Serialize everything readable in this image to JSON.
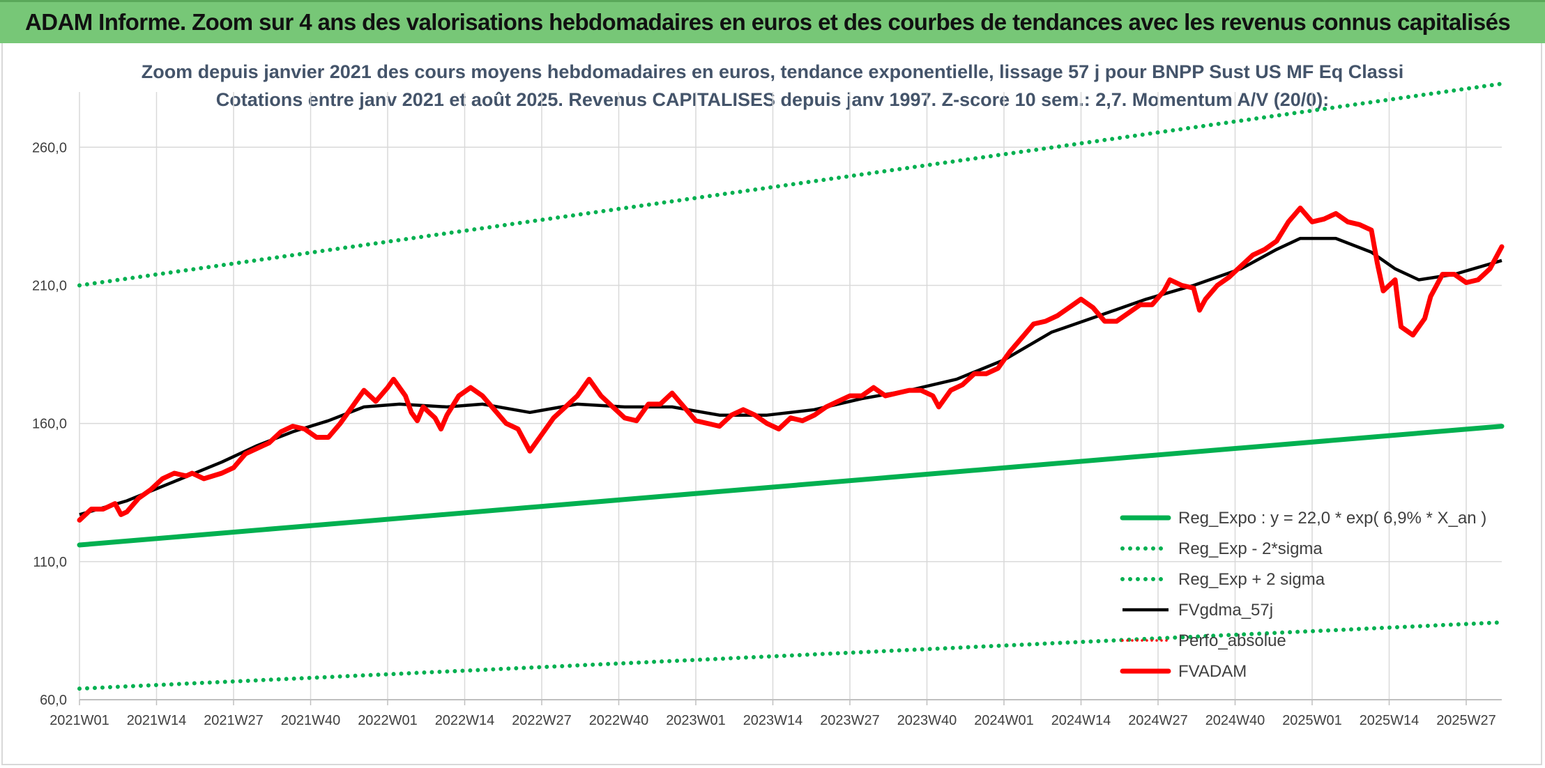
{
  "header": {
    "title": "ADAM Informe. Zoom sur 4 ans des valorisations hebdomadaires en euros et des courbes de tendances avec les revenus connus capitalisés"
  },
  "colors": {
    "header_bg": "#77c777",
    "trend_green": "#00b050",
    "price_red": "#ff0000",
    "avg_black": "#000000",
    "grid": "#d9d9d9"
  },
  "chart_data": {
    "type": "line",
    "title": "Zoom depuis janvier 2021 des cours moyens hebdomadaires en euros, tendance exponentielle, lissage 57 j pour BNPP Sust US MF Eq Classi",
    "subtitle": "Cotations entre janv 2021 et août 2025. Revenus CAPITALISES depuis janv 1997. Z-score 10 sem.: 2,7. Momentum A/V (20/0):",
    "ylim": [
      60,
      280
    ],
    "yticks": [
      "60,0",
      "110,0",
      "160,0",
      "210,0",
      "260,0"
    ],
    "ytick_values": [
      60,
      110,
      160,
      210,
      260
    ],
    "xticks": [
      "2021W01",
      "2021W14",
      "2021W27",
      "2021W40",
      "2022W01",
      "2022W14",
      "2022W27",
      "2022W40",
      "2023W01",
      "2023W14",
      "2023W27",
      "2023W40",
      "2024W01",
      "2024W14",
      "2024W27",
      "2024W40",
      "2025W01",
      "2025W14",
      "2025W27"
    ],
    "xtick_index": [
      0,
      13,
      26,
      39,
      52,
      65,
      78,
      91,
      104,
      117,
      130,
      143,
      156,
      169,
      182,
      195,
      208,
      221,
      234
    ],
    "n_weeks": 240,
    "grid": true,
    "legend_position": "bottom-right",
    "legend": [
      {
        "name": "Reg_Expo : y = 22,0 * exp( 6,9% *  X_an )",
        "style": "solid-thick",
        "color": "#00b050"
      },
      {
        "name": "Reg_Exp - 2*sigma",
        "style": "dotted",
        "color": "#00b050"
      },
      {
        "name": "Reg_Exp + 2 sigma",
        "style": "dotted",
        "color": "#00b050"
      },
      {
        "name": "FVgdma_57j",
        "style": "solid",
        "color": "#000000"
      },
      {
        "name": "Perfo_absolue",
        "style": "dotted-thin",
        "color": "#ff0000"
      },
      {
        "name": "FVADAM",
        "style": "solid-thick",
        "color": "#ff0000"
      }
    ],
    "series": [
      {
        "name": "Reg_Expo : y = 22,0 * exp( 6,9% *  X_an )",
        "style": "solid-thick",
        "color": "#00b050",
        "points": [
          [
            0,
            116
          ],
          [
            240,
            159
          ]
        ]
      },
      {
        "name": "Reg_Exp - 2*sigma",
        "style": "dotted",
        "color": "#00b050",
        "points": [
          [
            0,
            64
          ],
          [
            240,
            88
          ]
        ]
      },
      {
        "name": "Reg_Exp + 2 sigma",
        "style": "dotted",
        "color": "#00b050",
        "points": [
          [
            0,
            210
          ],
          [
            240,
            283
          ]
        ]
      },
      {
        "name": "FVgdma_57j",
        "style": "solid",
        "color": "#000000",
        "points": [
          [
            0,
            127
          ],
          [
            8,
            132
          ],
          [
            16,
            139
          ],
          [
            24,
            146
          ],
          [
            30,
            152
          ],
          [
            36,
            157
          ],
          [
            42,
            161
          ],
          [
            48,
            166
          ],
          [
            54,
            167
          ],
          [
            62,
            166
          ],
          [
            68,
            167
          ],
          [
            76,
            164
          ],
          [
            84,
            167
          ],
          [
            92,
            166
          ],
          [
            100,
            166
          ],
          [
            108,
            163
          ],
          [
            116,
            163
          ],
          [
            124,
            165
          ],
          [
            132,
            169
          ],
          [
            140,
            172
          ],
          [
            148,
            176
          ],
          [
            156,
            183
          ],
          [
            164,
            193
          ],
          [
            172,
            199
          ],
          [
            180,
            205
          ],
          [
            188,
            210
          ],
          [
            196,
            216
          ],
          [
            202,
            223
          ],
          [
            206,
            227
          ],
          [
            212,
            227
          ],
          [
            218,
            222
          ],
          [
            222,
            216
          ],
          [
            226,
            212
          ],
          [
            232,
            214
          ],
          [
            240,
            219
          ]
        ]
      },
      {
        "name": "FVADAM",
        "style": "solid-thick",
        "color": "#ff0000",
        "points": [
          [
            0,
            125
          ],
          [
            2,
            129
          ],
          [
            4,
            129
          ],
          [
            6,
            131
          ],
          [
            7,
            127
          ],
          [
            8,
            128
          ],
          [
            10,
            133
          ],
          [
            12,
            136
          ],
          [
            14,
            140
          ],
          [
            16,
            142
          ],
          [
            18,
            141
          ],
          [
            19,
            142
          ],
          [
            21,
            140
          ],
          [
            24,
            142
          ],
          [
            26,
            144
          ],
          [
            28,
            149
          ],
          [
            30,
            151
          ],
          [
            32,
            153
          ],
          [
            34,
            157
          ],
          [
            36,
            159
          ],
          [
            38,
            158
          ],
          [
            40,
            155
          ],
          [
            42,
            155
          ],
          [
            44,
            160
          ],
          [
            46,
            166
          ],
          [
            48,
            172
          ],
          [
            50,
            168
          ],
          [
            52,
            173
          ],
          [
            53,
            176
          ],
          [
            55,
            170
          ],
          [
            56,
            164
          ],
          [
            57,
            161
          ],
          [
            58,
            166
          ],
          [
            60,
            162
          ],
          [
            61,
            158
          ],
          [
            62,
            163
          ],
          [
            64,
            170
          ],
          [
            66,
            173
          ],
          [
            68,
            170
          ],
          [
            70,
            165
          ],
          [
            72,
            160
          ],
          [
            74,
            158
          ],
          [
            76,
            150
          ],
          [
            78,
            156
          ],
          [
            80,
            162
          ],
          [
            82,
            166
          ],
          [
            84,
            170
          ],
          [
            86,
            176
          ],
          [
            88,
            170
          ],
          [
            90,
            166
          ],
          [
            92,
            162
          ],
          [
            94,
            161
          ],
          [
            96,
            167
          ],
          [
            98,
            167
          ],
          [
            100,
            171
          ],
          [
            102,
            166
          ],
          [
            104,
            161
          ],
          [
            106,
            160
          ],
          [
            108,
            159
          ],
          [
            110,
            163
          ],
          [
            112,
            165
          ],
          [
            114,
            163
          ],
          [
            116,
            160
          ],
          [
            118,
            158
          ],
          [
            120,
            162
          ],
          [
            122,
            161
          ],
          [
            124,
            163
          ],
          [
            126,
            166
          ],
          [
            128,
            168
          ],
          [
            130,
            170
          ],
          [
            132,
            170
          ],
          [
            134,
            173
          ],
          [
            136,
            170
          ],
          [
            138,
            171
          ],
          [
            140,
            172
          ],
          [
            142,
            172
          ],
          [
            144,
            170
          ],
          [
            145,
            166
          ],
          [
            147,
            172
          ],
          [
            149,
            174
          ],
          [
            151,
            178
          ],
          [
            153,
            178
          ],
          [
            155,
            180
          ],
          [
            157,
            186
          ],
          [
            159,
            191
          ],
          [
            161,
            196
          ],
          [
            163,
            197
          ],
          [
            165,
            199
          ],
          [
            167,
            202
          ],
          [
            169,
            205
          ],
          [
            171,
            202
          ],
          [
            173,
            197
          ],
          [
            175,
            197
          ],
          [
            177,
            200
          ],
          [
            179,
            203
          ],
          [
            181,
            203
          ],
          [
            183,
            208
          ],
          [
            184,
            212
          ],
          [
            186,
            210
          ],
          [
            188,
            209
          ],
          [
            189,
            201
          ],
          [
            190,
            205
          ],
          [
            192,
            210
          ],
          [
            194,
            213
          ],
          [
            196,
            217
          ],
          [
            198,
            221
          ],
          [
            200,
            223
          ],
          [
            202,
            226
          ],
          [
            204,
            233
          ],
          [
            206,
            238
          ],
          [
            208,
            233
          ],
          [
            210,
            234
          ],
          [
            212,
            236
          ],
          [
            214,
            233
          ],
          [
            216,
            232
          ],
          [
            218,
            230
          ],
          [
            219,
            218
          ],
          [
            220,
            208
          ],
          [
            222,
            212
          ],
          [
            223,
            195
          ],
          [
            225,
            192
          ],
          [
            227,
            198
          ],
          [
            228,
            206
          ],
          [
            230,
            214
          ],
          [
            232,
            214
          ],
          [
            234,
            211
          ],
          [
            236,
            212
          ],
          [
            238,
            216
          ],
          [
            240,
            224
          ]
        ]
      }
    ]
  }
}
